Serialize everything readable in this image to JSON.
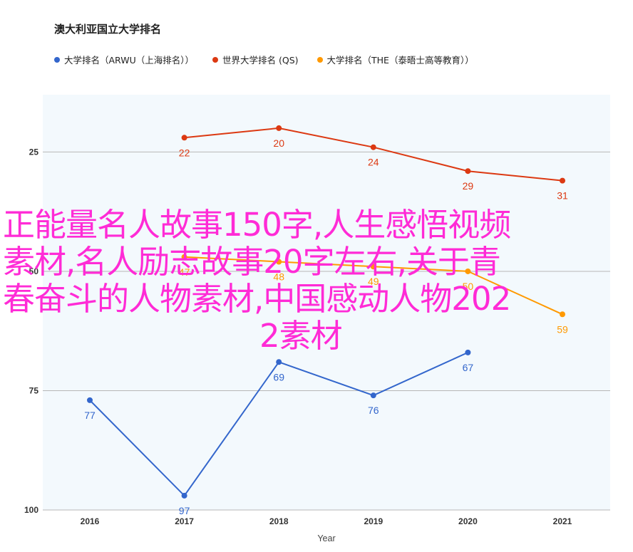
{
  "chart_data": {
    "type": "line",
    "title": "澳大利亚国立大学排名",
    "xlabel": "Year",
    "ylabel": "",
    "categories": [
      "2016",
      "2017",
      "2018",
      "2019",
      "2020",
      "2021"
    ],
    "y_ticks": [
      "25",
      "50",
      "75",
      "100"
    ],
    "y_tick_values": [
      25,
      50,
      75,
      100
    ],
    "ylim": [
      13,
      100
    ],
    "y_reversed": true,
    "grid": true,
    "legend_position": "top-left",
    "series": [
      {
        "name": "大学排名（ARWU（上海排名））",
        "color": "#3366cc",
        "values": [
          77,
          97,
          69,
          76,
          67,
          null
        ]
      },
      {
        "name": "世界大学排名 (QS)",
        "color": "#dc3912",
        "values": [
          null,
          22,
          20,
          24,
          29,
          31
        ]
      },
      {
        "name": "大学排名（THE（泰晤士高等教育））",
        "color": "#ff9900",
        "values": [
          null,
          47,
          48,
          49,
          50,
          59
        ]
      }
    ]
  },
  "watermark": {
    "lines": [
      "正能量名人故事150字,人生感悟视频",
      "素材,名人励志故事20字左右,关于青",
      "春奋斗的人物素材,中国感动人物202",
      "2素材"
    ]
  },
  "colors": {
    "plot_bg": "#f3f9fd",
    "grid": "#b7b7b7",
    "watermark": "#ff2bd6"
  }
}
